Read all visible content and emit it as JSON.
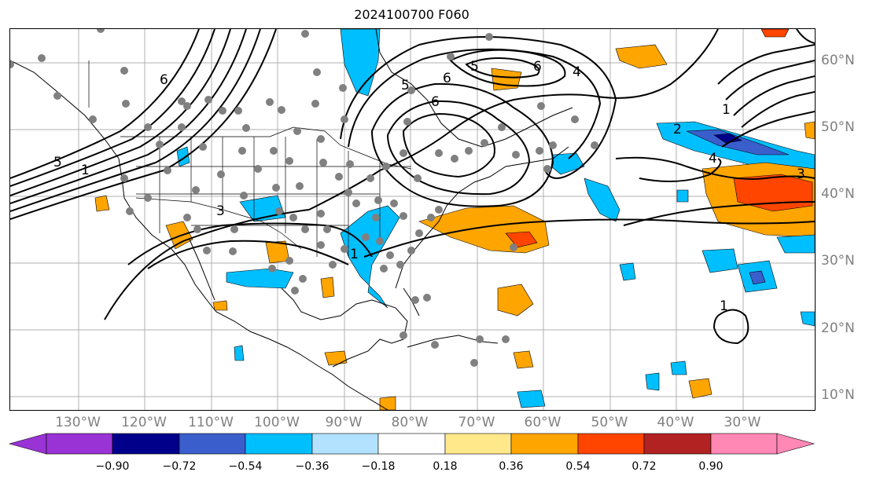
{
  "title": "2024100700 F060",
  "lat_labels": [
    "60°N",
    "50°N",
    "40°N",
    "30°N",
    "20°N",
    "10°N"
  ],
  "lon_labels": [
    "130°W",
    "120°W",
    "110°W",
    "100°W",
    "90°W",
    "80°W",
    "70°W",
    "60°W",
    "50°W",
    "40°W",
    "30°W"
  ],
  "contour_labels": [
    "6",
    "6",
    "5",
    "6",
    "5",
    "4",
    "6",
    "1",
    "2",
    "4",
    "3",
    "3",
    "1",
    "1",
    "1",
    "5"
  ],
  "colorbar": {
    "ticks": [
      "−0.90",
      "−0.72",
      "−0.54",
      "−0.36",
      "−0.18",
      "0.18",
      "0.36",
      "0.54",
      "0.72",
      "0.90"
    ],
    "colors": [
      "#9a33d6",
      "#00008b",
      "#3a5fcd",
      "#00bfff",
      "#b2e2ff",
      "#ffffff",
      "#ffe88a",
      "#ffa500",
      "#ff4500",
      "#b22222",
      "#ff88b5"
    ]
  }
}
